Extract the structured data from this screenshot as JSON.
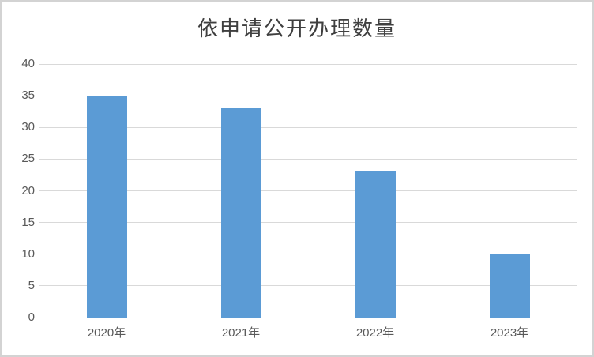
{
  "chart": {
    "colors": {
      "bar": "#5B9BD5",
      "grid": "#D9D9D9",
      "baseline": "#C6C6C6",
      "axis_text": "#595959",
      "title_text": "#3F3F3F",
      "frame_border": "#D3D3D3",
      "background": "#FFFFFF"
    }
  },
  "chart_data": {
    "type": "bar",
    "title": "依申请公开办理数量",
    "categories": [
      "2020年",
      "2021年",
      "2022年",
      "2023年"
    ],
    "values": [
      35,
      33,
      23,
      10
    ],
    "xlabel": "",
    "ylabel": "",
    "ylim": [
      0,
      40
    ],
    "ytick_step": 5,
    "ytick_labels": [
      "0",
      "5",
      "10",
      "15",
      "20",
      "25",
      "30",
      "35",
      "40"
    ],
    "grid": true,
    "legend": false,
    "bar_color": "#5B9BD5"
  }
}
